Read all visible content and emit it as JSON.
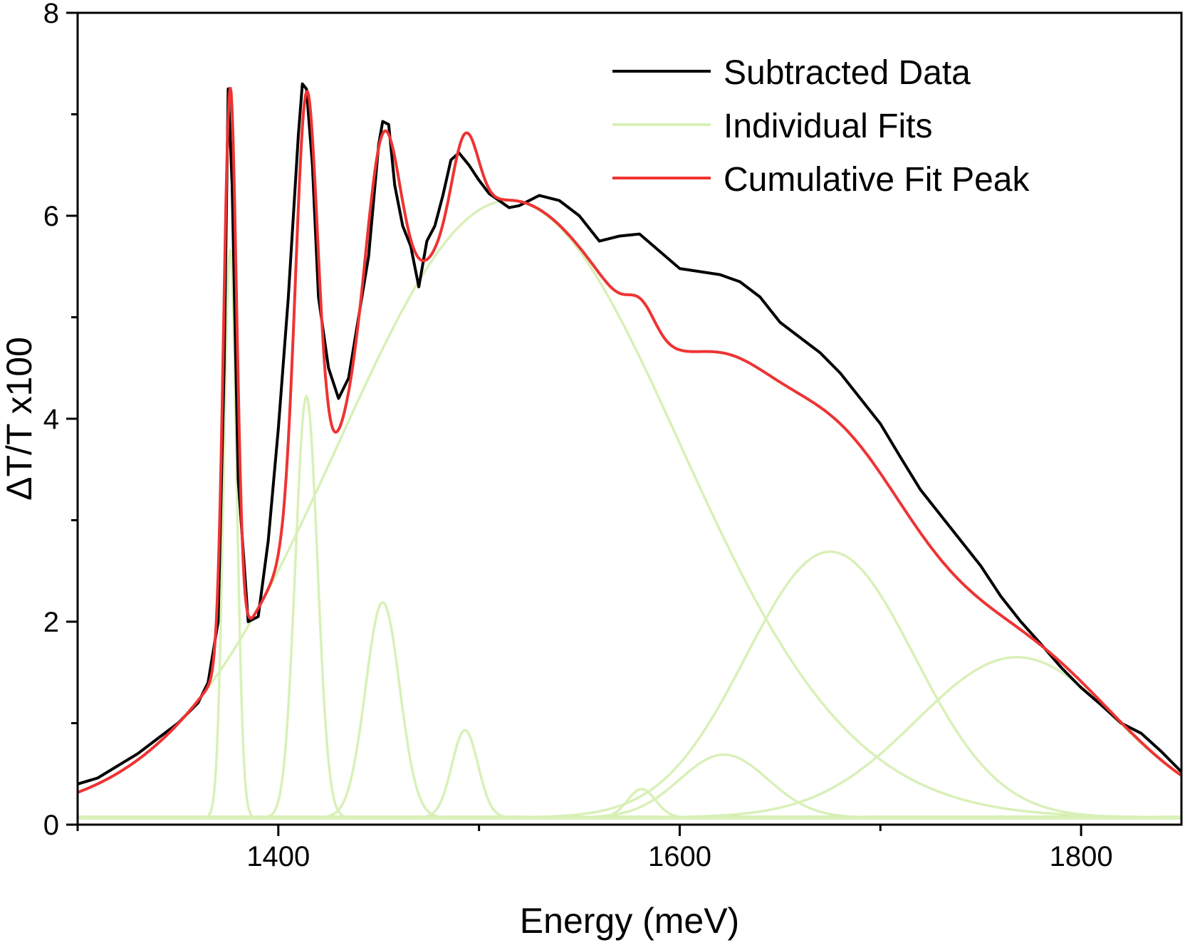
{
  "chart_data": {
    "type": "line",
    "xlabel": "Energy (meV)",
    "ylabel": "ΔT/T x100",
    "xlim": [
      1300,
      1850
    ],
    "ylim": [
      0,
      8
    ],
    "xticks": [
      1400,
      1600,
      1800
    ],
    "yticks": [
      0,
      2,
      4,
      6,
      8
    ],
    "xtick_labels": [
      "1400",
      "1600",
      "1800"
    ],
    "ytick_labels": [
      "0",
      "2",
      "4",
      "6",
      "8"
    ],
    "grid": false,
    "legend_position": "top-right",
    "legend": [
      {
        "label": "Subtracted Data",
        "color": "#000000"
      },
      {
        "label": "Individual Fits",
        "color": "#d9f0b8"
      },
      {
        "label": "Cumulative Fit Peak",
        "color": "#ee3333"
      }
    ],
    "colors": {
      "data": "#000000",
      "fits": "#d9f0b8",
      "cumulative": "#ee3333",
      "baseline": "#b7e27a"
    },
    "baseline": 0.07,
    "components": [
      {
        "center": 1515,
        "amplitude": 6.08,
        "sigma": 85
      },
      {
        "center": 1376,
        "amplitude": 5.6,
        "sigma": 3.2
      },
      {
        "center": 1414,
        "amplitude": 4.15,
        "sigma": 5.5
      },
      {
        "center": 1452,
        "amplitude": 2.12,
        "sigma": 8.5
      },
      {
        "center": 1493,
        "amplitude": 0.86,
        "sigma": 6.5
      },
      {
        "center": 1581,
        "amplitude": 0.28,
        "sigma": 7
      },
      {
        "center": 1622,
        "amplitude": 0.62,
        "sigma": 22
      },
      {
        "center": 1675,
        "amplitude": 2.62,
        "sigma": 42
      },
      {
        "center": 1768,
        "amplitude": 1.58,
        "sigma": 50
      }
    ],
    "series": [
      {
        "name": "Subtracted Data",
        "x": [
          1300,
          1310,
          1320,
          1330,
          1340,
          1350,
          1360,
          1365,
          1370,
          1373,
          1375,
          1377,
          1380,
          1385,
          1390,
          1395,
          1400,
          1405,
          1410,
          1412,
          1414,
          1417,
          1420,
          1425,
          1430,
          1435,
          1440,
          1445,
          1450,
          1452,
          1455,
          1458,
          1462,
          1466,
          1470,
          1474,
          1478,
          1482,
          1486,
          1490,
          1495,
          1500,
          1505,
          1510,
          1515,
          1520,
          1530,
          1540,
          1550,
          1560,
          1570,
          1580,
          1590,
          1600,
          1610,
          1620,
          1630,
          1640,
          1650,
          1660,
          1670,
          1680,
          1690,
          1700,
          1710,
          1720,
          1730,
          1740,
          1750,
          1760,
          1770,
          1780,
          1790,
          1800,
          1810,
          1820,
          1830,
          1840,
          1850
        ],
        "y": [
          0.4,
          0.46,
          0.58,
          0.7,
          0.85,
          1.0,
          1.2,
          1.4,
          2.0,
          4.5,
          7.25,
          6.3,
          3.4,
          2.0,
          2.05,
          2.8,
          3.9,
          5.2,
          6.8,
          7.3,
          7.25,
          6.5,
          5.2,
          4.5,
          4.2,
          4.4,
          5.0,
          5.6,
          6.7,
          6.93,
          6.9,
          6.3,
          5.9,
          5.7,
          5.3,
          5.75,
          5.9,
          6.2,
          6.55,
          6.62,
          6.5,
          6.35,
          6.22,
          6.15,
          6.08,
          6.1,
          6.2,
          6.15,
          6.0,
          5.75,
          5.8,
          5.82,
          5.65,
          5.48,
          5.45,
          5.42,
          5.35,
          5.2,
          4.95,
          4.8,
          4.65,
          4.45,
          4.2,
          3.95,
          3.62,
          3.3,
          3.05,
          2.8,
          2.55,
          2.25,
          2.0,
          1.78,
          1.55,
          1.35,
          1.18,
          1.0,
          0.9,
          0.72,
          0.52
        ]
      },
      {
        "name": "Individual Fits"
      },
      {
        "name": "Cumulative Fit Peak"
      }
    ]
  }
}
